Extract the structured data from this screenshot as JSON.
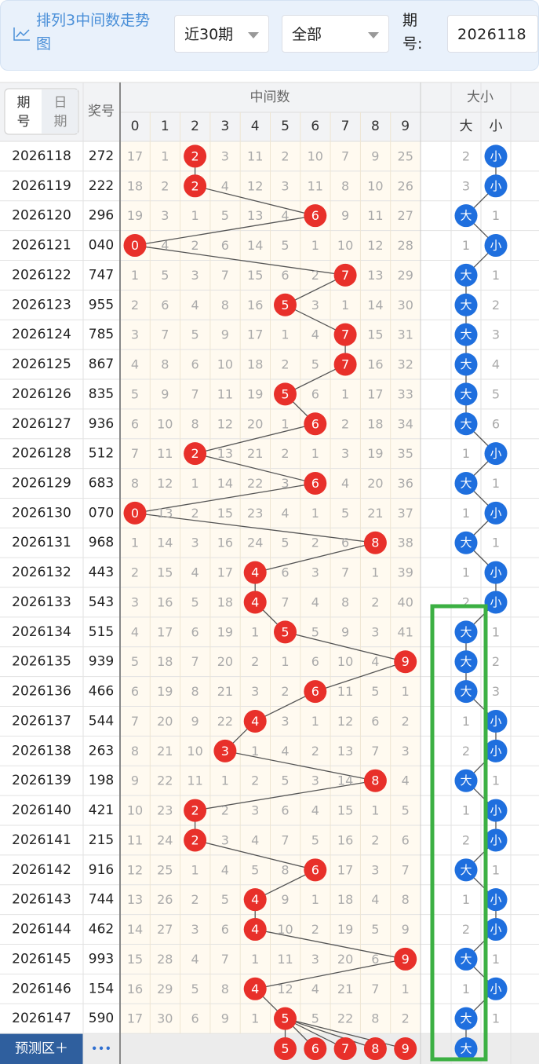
{
  "header": {
    "title": "排列3中间数走势图",
    "period": "近30期",
    "filter": "全部",
    "issue_label": "期号:",
    "issue_value": "2026118"
  },
  "table": {
    "tabs": [
      "期号",
      "日期"
    ],
    "prize_label": "奖号",
    "group_mid": "中间数",
    "group_size": "大小",
    "digits": [
      0,
      1,
      2,
      3,
      4,
      5,
      6,
      7,
      8,
      9
    ],
    "size_cols": [
      "大",
      "小"
    ],
    "rows": [
      {
        "issue": "2026118",
        "number": "272",
        "mid": [
          17,
          1,
          2,
          3,
          11,
          2,
          10,
          7,
          9,
          25
        ],
        "hit": 2,
        "size": [
          2,
          "小"
        ]
      },
      {
        "issue": "2026119",
        "number": "222",
        "mid": [
          18,
          2,
          2,
          4,
          12,
          3,
          11,
          8,
          10,
          26
        ],
        "hit": 2,
        "size": [
          3,
          "小"
        ]
      },
      {
        "issue": "2026120",
        "number": "296",
        "mid": [
          19,
          3,
          1,
          5,
          13,
          4,
          6,
          9,
          11,
          27
        ],
        "hit": 6,
        "size": [
          "大",
          1
        ]
      },
      {
        "issue": "2026121",
        "number": "040",
        "mid": [
          0,
          4,
          2,
          6,
          14,
          5,
          1,
          10,
          12,
          28
        ],
        "hit": 0,
        "size": [
          1,
          "小"
        ]
      },
      {
        "issue": "2026122",
        "number": "747",
        "mid": [
          1,
          5,
          3,
          7,
          15,
          6,
          2,
          7,
          13,
          29
        ],
        "hit": 7,
        "size": [
          "大",
          1
        ]
      },
      {
        "issue": "2026123",
        "number": "955",
        "mid": [
          2,
          6,
          4,
          8,
          16,
          5,
          3,
          1,
          14,
          30
        ],
        "hit": 5,
        "size": [
          "大",
          2
        ]
      },
      {
        "issue": "2026124",
        "number": "785",
        "mid": [
          3,
          7,
          5,
          9,
          17,
          1,
          4,
          7,
          15,
          31
        ],
        "hit": 7,
        "size": [
          "大",
          3
        ]
      },
      {
        "issue": "2026125",
        "number": "867",
        "mid": [
          4,
          8,
          6,
          10,
          18,
          2,
          5,
          7,
          16,
          32
        ],
        "hit": 7,
        "size": [
          "大",
          4
        ]
      },
      {
        "issue": "2026126",
        "number": "835",
        "mid": [
          5,
          9,
          7,
          11,
          19,
          5,
          6,
          1,
          17,
          33
        ],
        "hit": 5,
        "size": [
          "大",
          5
        ]
      },
      {
        "issue": "2026127",
        "number": "936",
        "mid": [
          6,
          10,
          8,
          12,
          20,
          1,
          6,
          2,
          18,
          34
        ],
        "hit": 6,
        "size": [
          "大",
          6
        ]
      },
      {
        "issue": "2026128",
        "number": "512",
        "mid": [
          7,
          11,
          2,
          13,
          21,
          2,
          1,
          3,
          19,
          35
        ],
        "hit": 2,
        "size": [
          1,
          "小"
        ]
      },
      {
        "issue": "2026129",
        "number": "683",
        "mid": [
          8,
          12,
          1,
          14,
          22,
          3,
          6,
          4,
          20,
          36
        ],
        "hit": 6,
        "size": [
          "大",
          1
        ]
      },
      {
        "issue": "2026130",
        "number": "070",
        "mid": [
          0,
          13,
          2,
          15,
          23,
          4,
          1,
          5,
          21,
          37
        ],
        "hit": 0,
        "size": [
          1,
          "小"
        ]
      },
      {
        "issue": "2026131",
        "number": "968",
        "mid": [
          1,
          14,
          3,
          16,
          24,
          5,
          2,
          6,
          8,
          38
        ],
        "hit": 8,
        "size": [
          "大",
          1
        ]
      },
      {
        "issue": "2026132",
        "number": "443",
        "mid": [
          2,
          15,
          4,
          17,
          4,
          6,
          3,
          7,
          1,
          39
        ],
        "hit": 4,
        "size": [
          1,
          "小"
        ]
      },
      {
        "issue": "2026133",
        "number": "543",
        "mid": [
          3,
          16,
          5,
          18,
          4,
          7,
          4,
          8,
          2,
          40
        ],
        "hit": 4,
        "size": [
          2,
          "小"
        ]
      },
      {
        "issue": "2026134",
        "number": "515",
        "mid": [
          4,
          17,
          6,
          19,
          1,
          5,
          5,
          9,
          3,
          41
        ],
        "hit": 5,
        "size": [
          "大",
          1
        ]
      },
      {
        "issue": "2026135",
        "number": "939",
        "mid": [
          5,
          18,
          7,
          20,
          2,
          1,
          6,
          10,
          4,
          9
        ],
        "hit": 9,
        "size": [
          "大",
          2
        ]
      },
      {
        "issue": "2026136",
        "number": "466",
        "mid": [
          6,
          19,
          8,
          21,
          3,
          2,
          6,
          11,
          5,
          1
        ],
        "hit": 6,
        "size": [
          "大",
          3
        ]
      },
      {
        "issue": "2026137",
        "number": "544",
        "mid": [
          7,
          20,
          9,
          22,
          4,
          3,
          1,
          12,
          6,
          2
        ],
        "hit": 4,
        "size": [
          1,
          "小"
        ]
      },
      {
        "issue": "2026138",
        "number": "263",
        "mid": [
          8,
          21,
          10,
          3,
          1,
          4,
          2,
          13,
          7,
          3
        ],
        "hit": 3,
        "size": [
          2,
          "小"
        ]
      },
      {
        "issue": "2026139",
        "number": "198",
        "mid": [
          9,
          22,
          11,
          1,
          2,
          5,
          3,
          14,
          8,
          4
        ],
        "hit": 8,
        "size": [
          "大",
          1
        ]
      },
      {
        "issue": "2026140",
        "number": "421",
        "mid": [
          10,
          23,
          2,
          2,
          3,
          6,
          4,
          15,
          1,
          5
        ],
        "hit": 2,
        "size": [
          1,
          "小"
        ]
      },
      {
        "issue": "2026141",
        "number": "215",
        "mid": [
          11,
          24,
          2,
          3,
          4,
          7,
          5,
          16,
          2,
          6
        ],
        "hit": 2,
        "size": [
          2,
          "小"
        ]
      },
      {
        "issue": "2026142",
        "number": "916",
        "mid": [
          12,
          25,
          1,
          4,
          5,
          8,
          6,
          17,
          3,
          7
        ],
        "hit": 6,
        "size": [
          "大",
          1
        ]
      },
      {
        "issue": "2026143",
        "number": "744",
        "mid": [
          13,
          26,
          2,
          5,
          4,
          9,
          1,
          18,
          4,
          8
        ],
        "hit": 4,
        "size": [
          1,
          "小"
        ]
      },
      {
        "issue": "2026144",
        "number": "462",
        "mid": [
          14,
          27,
          3,
          6,
          4,
          10,
          2,
          19,
          5,
          9
        ],
        "hit": 4,
        "size": [
          2,
          "小"
        ]
      },
      {
        "issue": "2026145",
        "number": "993",
        "mid": [
          15,
          28,
          4,
          7,
          1,
          11,
          3,
          20,
          6,
          9
        ],
        "hit": 9,
        "size": [
          "大",
          1
        ]
      },
      {
        "issue": "2026146",
        "number": "154",
        "mid": [
          16,
          29,
          5,
          8,
          4,
          12,
          4,
          21,
          7,
          1
        ],
        "hit": 4,
        "size": [
          1,
          "小"
        ]
      },
      {
        "issue": "2026147",
        "number": "590",
        "mid": [
          17,
          30,
          6,
          9,
          1,
          5,
          5,
          22,
          8,
          2
        ],
        "hit": 5,
        "size": [
          "大",
          1
        ]
      }
    ],
    "footer": {
      "label": "预测区＋",
      "more": "•••",
      "predictions": [
        5,
        6,
        7,
        8,
        9
      ],
      "size": "大"
    }
  }
}
